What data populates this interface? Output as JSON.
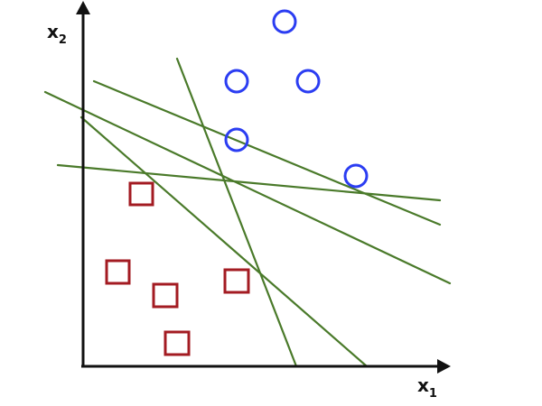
{
  "diagram": {
    "axes": {
      "x_label": "x",
      "x_subscript": "1",
      "y_label": "x",
      "y_subscript": "2",
      "color": "#111111"
    },
    "classes": {
      "circle_color": "#2b3df2",
      "square_color": "#a31b22"
    },
    "line_color": "#4a7a2a"
  }
}
